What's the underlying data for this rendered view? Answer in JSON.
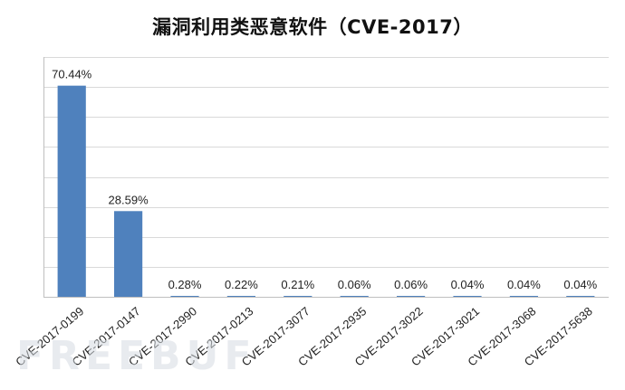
{
  "watermark": "FREEBUF",
  "chart_data": {
    "type": "bar",
    "title": "漏洞利用类恶意软件（CVE-2017）",
    "categories": [
      "CVE-2017-0199",
      "CVE-2017-0147",
      "CVE-2017-2990",
      "CVE-2017-0213",
      "CVE-2017-3077",
      "CVE-2017-2935",
      "CVE-2017-3022",
      "CVE-2017-3021",
      "CVE-2017-3068",
      "CVE-2017-5638"
    ],
    "values": [
      70.44,
      28.59,
      0.28,
      0.22,
      0.21,
      0.06,
      0.06,
      0.04,
      0.04,
      0.04
    ],
    "data_labels": [
      "70.44%",
      "28.59%",
      "0.28%",
      "0.22%",
      "0.21%",
      "0.06%",
      "0.06%",
      "0.04%",
      "0.04%",
      "0.04%"
    ],
    "xlabel": "",
    "ylabel": "",
    "ylim": [
      0,
      80
    ],
    "y_gridlines": 8,
    "grid": true,
    "legend": "none",
    "colors": {
      "bar": "#4f81bd",
      "grid": "#d9d9d9",
      "axis": "#bfbfbf",
      "text": "#222222"
    }
  }
}
